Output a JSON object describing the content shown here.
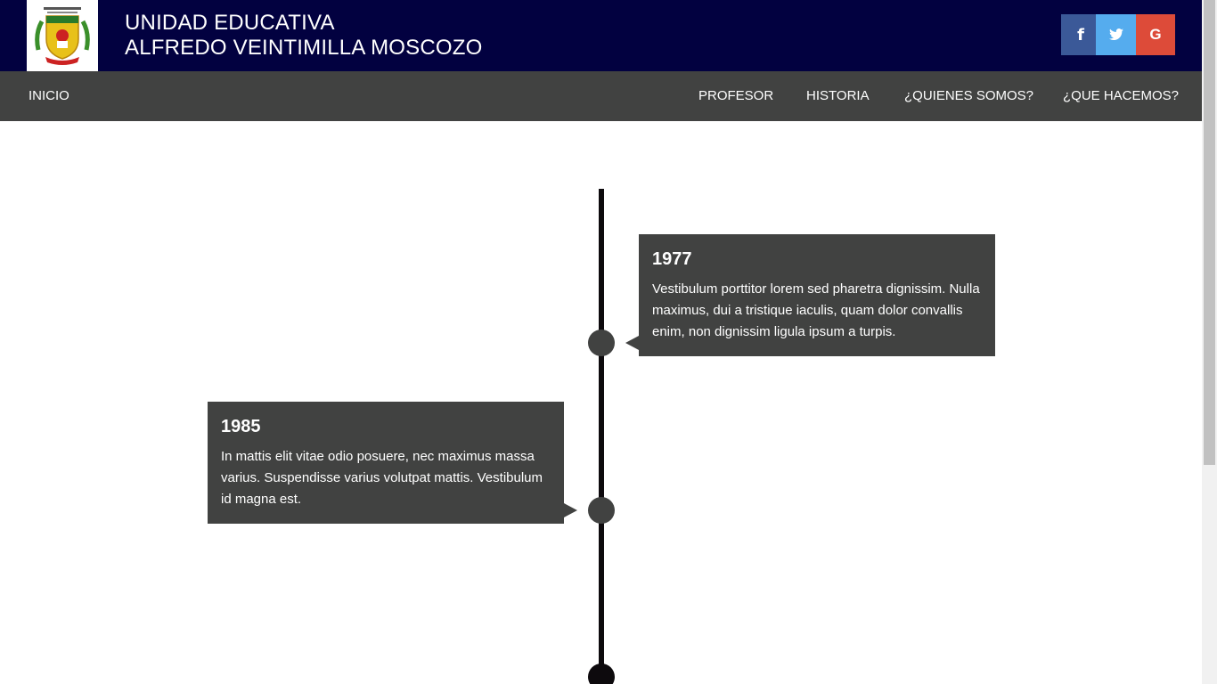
{
  "header": {
    "title_line1": "UNIDAD EDUCATIVA",
    "title_line2": "ALFREDO VEINTIMILLA MOSCOZO",
    "logo_icon": "school-crest-logo",
    "bg_color": "#020140",
    "social": [
      {
        "name": "facebook-icon",
        "glyph": "f",
        "color": "#3b5998"
      },
      {
        "name": "twitter-icon",
        "glyph": "t",
        "color": "#55acee"
      },
      {
        "name": "google-icon",
        "glyph": "G",
        "color": "#dd4b39"
      }
    ]
  },
  "nav": {
    "bg_color": "#414241",
    "home": "INICIO",
    "items": [
      "PROFESOR",
      "HISTORIA",
      "¿QUIENES SOMOS?",
      "¿QUE HACEMOS?"
    ]
  },
  "timeline": {
    "line_color": "#0d0a0d",
    "entries": [
      {
        "year": "1977",
        "text": "Vestibulum porttitor lorem sed pharetra dignissim. Nulla maximus, dui a tristique iaculis, quam dolor convallis enim, non dignissim ligula ipsum a turpis."
      },
      {
        "year": "1985",
        "text": "In mattis elit vitae odio posuere, nec maximus massa varius. Suspendisse varius volutpat mattis. Vestibulum id magna est."
      }
    ]
  }
}
